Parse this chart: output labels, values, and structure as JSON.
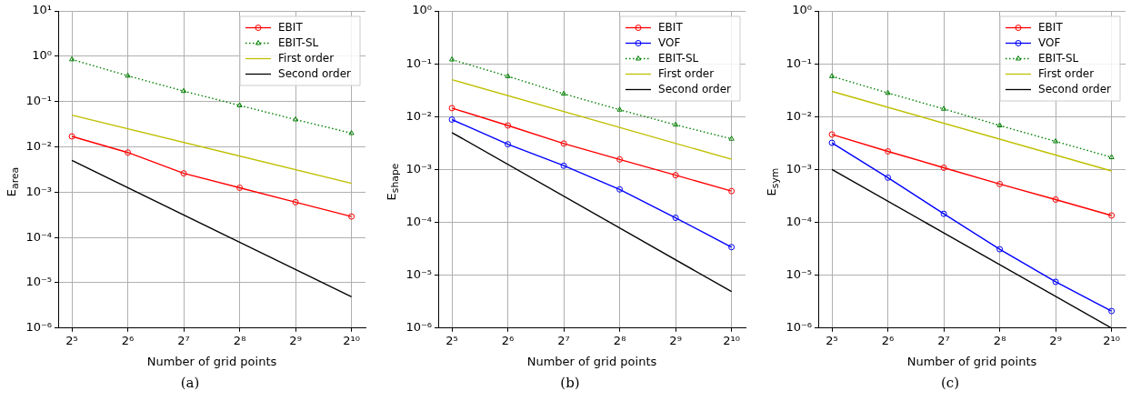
{
  "chart_data": [
    {
      "type": "line",
      "xlabel": "Number of grid points",
      "ylabel": "E$_{area}$",
      "log": "xy",
      "grid": true,
      "legend": "top right",
      "annotations": [
        "(a)"
      ],
      "xlim": [
        27,
        1218
      ],
      "xticks": [
        {
          "value": 32,
          "label": "2⁵"
        },
        {
          "value": 64,
          "label": "2⁶"
        },
        {
          "value": 128,
          "label": "2⁷"
        },
        {
          "value": 256,
          "label": "2⁸"
        },
        {
          "value": 512,
          "label": "2⁹"
        },
        {
          "value": 1024,
          "label": "2¹⁰"
        }
      ],
      "ylim": [
        1e-06,
        10
      ],
      "yticks": [
        {
          "value": 1e-06,
          "label": "10⁻⁶"
        },
        {
          "value": 1e-05,
          "label": "10⁻⁵"
        },
        {
          "value": 0.0001,
          "label": "10⁻⁴"
        },
        {
          "value": 0.001,
          "label": "10⁻³"
        },
        {
          "value": 0.01,
          "label": "10⁻²"
        },
        {
          "value": 0.1,
          "label": "10⁻¹"
        },
        {
          "value": 1,
          "label": "10⁰"
        },
        {
          "value": 10,
          "label": "10¹"
        }
      ],
      "series": [
        {
          "name": "EBIT",
          "color": "#ff0000",
          "marker": "circle",
          "line_style": "solid",
          "x": [
            32,
            64,
            128,
            256,
            512,
            1024
          ],
          "values": [
            0.017,
            0.0075,
            0.0026,
            0.00125,
            0.0006,
            0.00029
          ]
        },
        {
          "name": "EBIT-SL",
          "color": "#008000",
          "marker": "triangle",
          "line_style": "dotted",
          "x": [
            32,
            64,
            128,
            256,
            512,
            1024
          ],
          "values": [
            0.85,
            0.37,
            0.17,
            0.082,
            0.04,
            0.02
          ]
        },
        {
          "name": "First order",
          "color": "#bfbf00",
          "marker": "none",
          "line_style": "solid",
          "x": [
            32,
            1024
          ],
          "values": [
            0.05,
            0.00156
          ]
        },
        {
          "name": "Second order",
          "color": "#000000",
          "marker": "none",
          "line_style": "solid",
          "x": [
            32,
            1024
          ],
          "values": [
            0.005,
            4.9e-06
          ]
        }
      ]
    },
    {
      "type": "line",
      "xlabel": "Number of grid points",
      "ylabel": "E$_{shape}$",
      "log": "xy",
      "grid": true,
      "legend": "top right",
      "annotations": [
        "(b)"
      ],
      "xlim": [
        27,
        1218
      ],
      "xticks": [
        {
          "value": 32,
          "label": "2⁵"
        },
        {
          "value": 64,
          "label": "2⁶"
        },
        {
          "value": 128,
          "label": "2⁷"
        },
        {
          "value": 256,
          "label": "2⁸"
        },
        {
          "value": 512,
          "label": "2⁹"
        },
        {
          "value": 1024,
          "label": "2¹⁰"
        }
      ],
      "ylim": [
        1e-06,
        1
      ],
      "yticks": [
        {
          "value": 1e-06,
          "label": "10⁻⁶"
        },
        {
          "value": 1e-05,
          "label": "10⁻⁵"
        },
        {
          "value": 0.0001,
          "label": "10⁻⁴"
        },
        {
          "value": 0.001,
          "label": "10⁻³"
        },
        {
          "value": 0.01,
          "label": "10⁻²"
        },
        {
          "value": 0.1,
          "label": "10⁻¹"
        },
        {
          "value": 1,
          "label": "10⁰"
        }
      ],
      "series": [
        {
          "name": "EBIT",
          "color": "#ff0000",
          "marker": "circle",
          "line_style": "solid",
          "x": [
            32,
            64,
            128,
            256,
            512,
            1024
          ],
          "values": [
            0.0145,
            0.0068,
            0.0031,
            0.00155,
            0.00078,
            0.00039
          ]
        },
        {
          "name": "VOF",
          "color": "#0000ff",
          "marker": "circle",
          "line_style": "solid",
          "x": [
            32,
            64,
            128,
            256,
            512,
            1024
          ],
          "values": [
            0.0088,
            0.003,
            0.00118,
            0.00042,
            0.000122,
            3.4e-05
          ]
        },
        {
          "name": "EBIT-SL",
          "color": "#008000",
          "marker": "triangle",
          "line_style": "dotted",
          "x": [
            32,
            64,
            128,
            256,
            512,
            1024
          ],
          "values": [
            0.12,
            0.058,
            0.027,
            0.0135,
            0.007,
            0.0038
          ]
        },
        {
          "name": "First order",
          "color": "#bfbf00",
          "marker": "none",
          "line_style": "solid",
          "x": [
            32,
            1024
          ],
          "values": [
            0.05,
            0.00156
          ]
        },
        {
          "name": "Second order",
          "color": "#000000",
          "marker": "none",
          "line_style": "solid",
          "x": [
            32,
            1024
          ],
          "values": [
            0.005,
            4.9e-06
          ]
        }
      ]
    },
    {
      "type": "line",
      "xlabel": "Number of grid points",
      "ylabel": "E$_{sym}$",
      "log": "xy",
      "grid": true,
      "legend": "top right",
      "annotations": [
        "(c)"
      ],
      "xlim": [
        27,
        1218
      ],
      "xticks": [
        {
          "value": 32,
          "label": "2⁵"
        },
        {
          "value": 64,
          "label": "2⁶"
        },
        {
          "value": 128,
          "label": "2⁷"
        },
        {
          "value": 256,
          "label": "2⁸"
        },
        {
          "value": 512,
          "label": "2⁹"
        },
        {
          "value": 1024,
          "label": "2¹⁰"
        }
      ],
      "ylim": [
        1e-06,
        1
      ],
      "yticks": [
        {
          "value": 1e-06,
          "label": "10⁻⁶"
        },
        {
          "value": 1e-05,
          "label": "10⁻⁵"
        },
        {
          "value": 0.0001,
          "label": "10⁻⁴"
        },
        {
          "value": 0.001,
          "label": "10⁻³"
        },
        {
          "value": 0.01,
          "label": "10⁻²"
        },
        {
          "value": 0.1,
          "label": "10⁻¹"
        },
        {
          "value": 1,
          "label": "10⁰"
        }
      ],
      "series": [
        {
          "name": "EBIT",
          "color": "#ff0000",
          "marker": "circle",
          "line_style": "solid",
          "x": [
            32,
            64,
            128,
            256,
            512,
            1024
          ],
          "values": [
            0.0046,
            0.0022,
            0.00108,
            0.00053,
            0.00027,
            0.000135
          ]
        },
        {
          "name": "VOF",
          "color": "#0000ff",
          "marker": "circle",
          "line_style": "solid",
          "x": [
            32,
            64,
            128,
            256,
            512,
            1024
          ],
          "values": [
            0.0032,
            0.0007,
            0.000145,
            3.1e-05,
            7.5e-06,
            2.1e-06
          ]
        },
        {
          "name": "EBIT-SL",
          "color": "#008000",
          "marker": "triangle",
          "line_style": "dotted",
          "x": [
            32,
            64,
            128,
            256,
            512,
            1024
          ],
          "values": [
            0.058,
            0.028,
            0.014,
            0.0068,
            0.0034,
            0.0017
          ]
        },
        {
          "name": "First order",
          "color": "#bfbf00",
          "marker": "none",
          "line_style": "solid",
          "x": [
            32,
            1024
          ],
          "values": [
            0.03,
            0.00094
          ]
        },
        {
          "name": "Second order",
          "color": "#000000",
          "marker": "none",
          "line_style": "solid",
          "x": [
            32,
            1024
          ],
          "values": [
            0.001,
            1e-06
          ]
        }
      ]
    }
  ]
}
